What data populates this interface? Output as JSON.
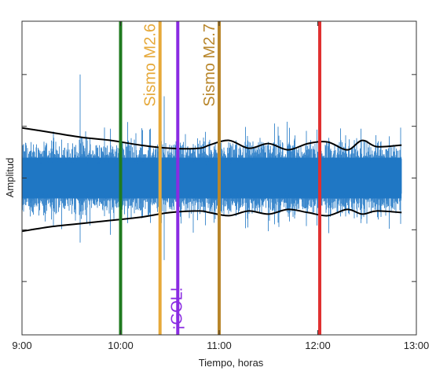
{
  "chart_data": {
    "type": "line",
    "xlabel": "Tiempo, horas",
    "ylabel": "Amplitud",
    "x_ticks": [
      {
        "value": 9.0,
        "label": "9:00"
      },
      {
        "value": 10.0,
        "label": "10:00"
      },
      {
        "value": 11.0,
        "label": "11:00"
      },
      {
        "value": 12.0,
        "label": "12:00"
      },
      {
        "value": 13.0,
        "label": "13:00"
      }
    ],
    "xlim": [
      9.0,
      13.0
    ],
    "ylim": [
      -1.0,
      1.0
    ],
    "y_ticks_labeled": false,
    "grid": false,
    "signal": {
      "color": "#1f77c4",
      "x_start": 9.0,
      "x_end": 12.85,
      "core_half_amplitude": 0.13,
      "spike_max_amplitude": 0.7
    },
    "envelope": {
      "color": "#000000",
      "x": [
        9.0,
        9.3,
        9.6,
        9.9,
        10.2,
        10.5,
        10.8,
        10.9,
        11.1,
        11.3,
        11.5,
        11.7,
        11.9,
        12.1,
        12.3,
        12.45,
        12.6,
        12.85
      ],
      "upper": [
        0.32,
        0.29,
        0.26,
        0.24,
        0.21,
        0.19,
        0.19,
        0.21,
        0.24,
        0.19,
        0.22,
        0.18,
        0.22,
        0.23,
        0.18,
        0.24,
        0.2,
        0.21
      ],
      "lower": [
        -0.34,
        -0.31,
        -0.29,
        -0.27,
        -0.25,
        -0.22,
        -0.21,
        -0.22,
        -0.24,
        -0.21,
        -0.23,
        -0.2,
        -0.22,
        -0.24,
        -0.2,
        -0.23,
        -0.21,
        -0.22
      ]
    },
    "events": [
      {
        "x": 10.0,
        "color": "#1f7a1f",
        "label": ""
      },
      {
        "x": 10.4,
        "color": "#e6a93a",
        "label": "Sismo M2.6",
        "label_pos": "top"
      },
      {
        "x": 10.58,
        "color": "#8a2be2",
        "label": "¡GOL!",
        "label_pos": "bottom"
      },
      {
        "x": 11.0,
        "color": "#b8862b",
        "label": "Sismo M2.7",
        "label_pos": "top"
      },
      {
        "x": 12.02,
        "color": "#e03030",
        "label": ""
      }
    ]
  }
}
